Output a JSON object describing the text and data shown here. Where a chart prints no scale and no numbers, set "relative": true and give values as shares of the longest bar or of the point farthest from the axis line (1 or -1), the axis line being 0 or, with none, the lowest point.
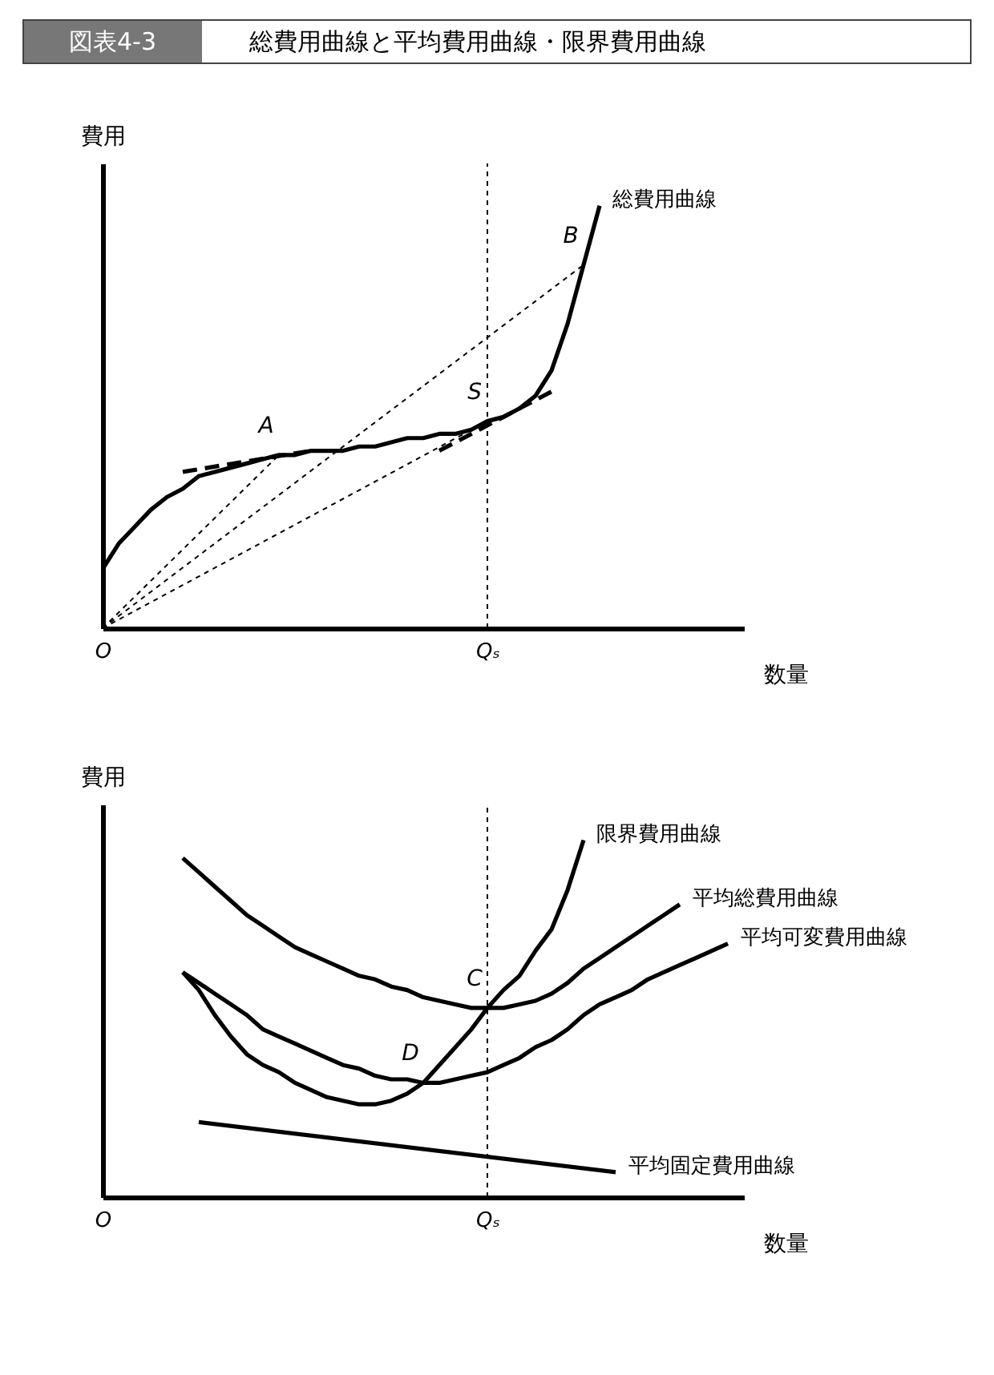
{
  "chart_data": [
    {
      "type": "line",
      "title": "総費用曲線と平均費用曲線・限界費用曲線",
      "subtitle": "図表4-3",
      "relative": true,
      "tick_labels": "x",
      "xlabel": "数量",
      "ylabel": "費用",
      "categories": [
        "O",
        null,
        null,
        null,
        null,
        null,
        null,
        null,
        null,
        null,
        null,
        null,
        null,
        null,
        null,
        null,
        null,
        null,
        null,
        null,
        null,
        null,
        null,
        null,
        "Qₛ",
        null,
        null,
        null,
        null,
        null,
        null,
        null,
        null,
        null,
        null,
        null,
        null,
        null,
        null,
        null,
        null
      ],
      "series": [
        {
          "name": "総費用曲線",
          "color": "#000000",
          "values": [
            0.14,
            0.2,
            0.24,
            0.28,
            0.31,
            0.33,
            0.36,
            0.37,
            0.38,
            0.39,
            0.4,
            0.41,
            0.41,
            0.42,
            0.42,
            0.42,
            0.43,
            0.43,
            0.44,
            0.45,
            0.45,
            0.46,
            0.46,
            0.47,
            0.49,
            0.5,
            0.52,
            0.55,
            0.61,
            0.72,
            0.86,
            1.0,
            null,
            null,
            null,
            null,
            null,
            null,
            null,
            null,
            null
          ]
        },
        {
          "name": "A",
          "color": "#000000",
          "line_style": "dotted",
          "values": [
            0,
            null,
            null,
            null,
            null,
            null,
            null,
            null,
            null,
            null,
            null,
            0.41,
            null,
            null,
            null,
            null,
            null,
            null,
            null,
            null,
            null,
            null,
            null,
            null,
            null,
            null,
            null,
            null,
            null,
            null,
            null,
            null,
            null,
            null,
            null,
            null,
            null,
            null,
            null,
            null,
            null
          ]
        },
        {
          "name": "S",
          "color": "#000000",
          "line_style": "dotted",
          "values": [
            0,
            null,
            null,
            null,
            null,
            null,
            null,
            null,
            null,
            null,
            null,
            null,
            null,
            null,
            null,
            null,
            null,
            null,
            null,
            null,
            null,
            null,
            null,
            null,
            0.49,
            null,
            null,
            null,
            null,
            null,
            null,
            null,
            null,
            null,
            null,
            null,
            null,
            null,
            null,
            null,
            null
          ]
        },
        {
          "name": "B",
          "color": "#000000",
          "line_style": "dotted",
          "values": [
            0,
            null,
            null,
            null,
            null,
            null,
            null,
            null,
            null,
            null,
            null,
            null,
            null,
            null,
            null,
            null,
            null,
            null,
            null,
            null,
            null,
            null,
            null,
            null,
            null,
            null,
            null,
            null,
            null,
            null,
            0.86,
            null,
            null,
            null,
            null,
            null,
            null,
            null,
            null,
            null,
            null
          ]
        },
        {
          "color": "#000000",
          "line_style": "dashed",
          "values": [
            null,
            null,
            null,
            null,
            null,
            0.37,
            null,
            null,
            null,
            null,
            null,
            null,
            null,
            0.42,
            null,
            null,
            null,
            null,
            null,
            null,
            null,
            null,
            null,
            null,
            null,
            null,
            null,
            null,
            null,
            null,
            null,
            null,
            null,
            null,
            null,
            null,
            null,
            null,
            null,
            null,
            null
          ]
        },
        {
          "color": "#000000",
          "line_style": "dashed",
          "values": [
            null,
            null,
            null,
            null,
            null,
            null,
            null,
            null,
            null,
            null,
            null,
            null,
            null,
            null,
            null,
            null,
            null,
            null,
            null,
            null,
            null,
            0.42,
            null,
            null,
            null,
            null,
            null,
            null,
            0.56,
            null,
            null,
            null,
            null,
            null,
            null,
            null,
            null,
            null,
            null,
            null,
            null
          ]
        }
      ],
      "ref_lines": [
        {
          "axis": "x",
          "value": "Qₛ",
          "line_style": "dotted"
        }
      ]
    },
    {
      "type": "line",
      "relative": true,
      "tick_labels": "x",
      "xlabel": "数量",
      "ylabel": "費用",
      "categories": [
        "O",
        null,
        null,
        null,
        null,
        null,
        null,
        null,
        null,
        null,
        null,
        null,
        null,
        null,
        null,
        null,
        null,
        null,
        null,
        null,
        null,
        null,
        null,
        null,
        "Qₛ",
        null,
        null,
        null,
        null,
        null,
        null,
        null,
        null,
        null,
        null,
        null,
        null,
        null,
        null,
        null,
        null
      ],
      "series": [
        {
          "name": "限界費用曲線",
          "color": "#000000",
          "values": [
            null,
            null,
            null,
            null,
            null,
            0.63,
            0.58,
            0.51,
            0.45,
            0.4,
            0.37,
            0.35,
            0.32,
            0.3,
            0.28,
            0.27,
            0.26,
            0.26,
            0.27,
            0.29,
            0.32,
            0.37,
            0.42,
            0.47,
            0.53,
            0.58,
            0.62,
            0.69,
            0.75,
            0.86,
            1.0,
            null,
            null,
            null,
            null,
            null,
            null,
            null,
            null,
            null,
            null
          ]
        },
        {
          "name": "平均総費用曲線",
          "color": "#000000",
          "values": [
            null,
            null,
            null,
            null,
            null,
            0.95,
            0.91,
            0.87,
            0.83,
            0.79,
            0.76,
            0.73,
            0.7,
            0.68,
            0.66,
            0.64,
            0.62,
            0.61,
            0.59,
            0.58,
            0.56,
            0.55,
            0.54,
            0.53,
            0.53,
            0.53,
            0.54,
            0.55,
            0.57,
            0.6,
            0.64,
            0.67,
            0.7,
            0.73,
            0.76,
            0.79,
            0.82,
            null,
            null,
            null,
            null
          ]
        },
        {
          "name": "平均可変費用曲線",
          "color": "#000000",
          "values": [
            null,
            null,
            null,
            null,
            null,
            0.63,
            0.6,
            0.57,
            0.54,
            0.51,
            0.47,
            0.45,
            0.43,
            0.41,
            0.39,
            0.37,
            0.36,
            0.34,
            0.33,
            0.33,
            0.32,
            0.32,
            0.33,
            0.34,
            0.35,
            0.37,
            0.39,
            0.42,
            0.44,
            0.47,
            0.51,
            0.54,
            0.56,
            0.58,
            0.61,
            0.63,
            0.65,
            0.67,
            0.69,
            0.71,
            null
          ]
        },
        {
          "name": "平均固定費用曲線",
          "color": "#000000",
          "values": [
            null,
            null,
            null,
            null,
            null,
            null,
            0.21,
            null,
            null,
            null,
            null,
            null,
            null,
            null,
            null,
            null,
            null,
            null,
            null,
            null,
            null,
            null,
            null,
            null,
            null,
            null,
            null,
            null,
            null,
            null,
            null,
            null,
            0.07,
            null,
            null,
            null,
            null,
            null,
            null,
            null,
            null
          ]
        }
      ],
      "ref_lines": [
        {
          "axis": "x",
          "value": "Qₛ",
          "line_style": "dotted"
        }
      ],
      "annotations": [
        {
          "text": "C",
          "x": "Qₛ",
          "y": 0.53
        },
        {
          "text": "D",
          "y": 0.32
        }
      ]
    }
  ]
}
